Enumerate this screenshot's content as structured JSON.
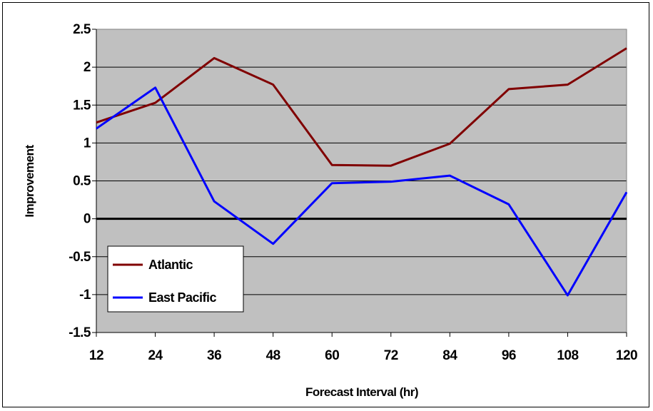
{
  "chart_data": {
    "type": "line",
    "x": [
      12,
      24,
      36,
      48,
      60,
      72,
      84,
      96,
      108,
      120
    ],
    "x_tick_labels": [
      "12",
      "24",
      "36",
      "48",
      "60",
      "72",
      "84",
      "96",
      "108",
      "120"
    ],
    "y_tick_labels": [
      "2.5",
      "2",
      "1.5",
      "1",
      "0.5",
      "0",
      "-0.5",
      "-1",
      "-1.5"
    ],
    "ylim": [
      -1.5,
      2.5
    ],
    "xlabel": "Forecast Interval (hr)",
    "ylabel": "Improvement",
    "grid": true,
    "legend_position": "bottom-left",
    "plot_background": "#c0c0c0",
    "series": [
      {
        "name": "Atlantic",
        "color": "#800000",
        "values": [
          1.27,
          1.53,
          2.12,
          1.77,
          0.71,
          0.7,
          0.99,
          1.71,
          1.77,
          2.25
        ]
      },
      {
        "name": "East Pacific",
        "color": "#0000ff",
        "values": [
          1.19,
          1.73,
          0.23,
          -0.33,
          0.47,
          0.49,
          0.57,
          0.19,
          -1.01,
          0.35
        ]
      }
    ]
  }
}
